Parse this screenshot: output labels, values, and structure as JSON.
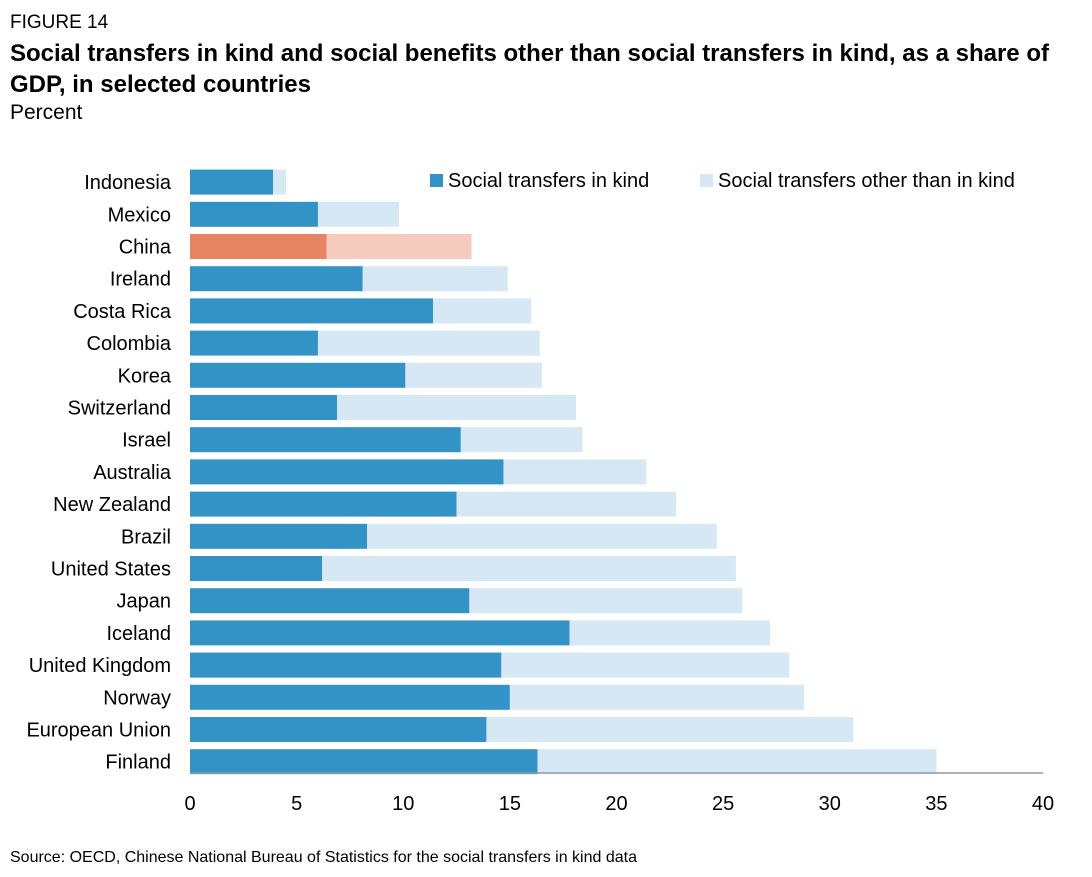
{
  "figure_label": "FIGURE 14",
  "title": "Social transfers in kind and social benefits other than social transfers in kind, as a share of GDP, in selected countries",
  "subtitle": "Percent",
  "source": "Source: OECD, Chinese National Bureau of Statistics for the social transfers in kind data",
  "colors": {
    "in_kind": "#3393c6",
    "other": "#d5e8f4",
    "highlight_in_kind": "#e78563",
    "highlight_other": "#f4cbbd",
    "axis": "#999999"
  },
  "chart_data": {
    "type": "bar",
    "orientation": "horizontal",
    "stacked": true,
    "categories": [
      "Indonesia",
      "Mexico",
      "China",
      "Ireland",
      "Costa Rica",
      "Colombia",
      "Korea",
      "Switzerland",
      "Israel",
      "Australia",
      "New Zealand",
      "Brazil",
      "United States",
      "Japan",
      "Iceland",
      "United Kingdom",
      "Norway",
      "European Union",
      "Finland"
    ],
    "highlight_category": "China",
    "series": [
      {
        "name": "Social transfers in kind",
        "values": [
          3.9,
          6.0,
          6.4,
          8.1,
          11.4,
          6.0,
          10.1,
          6.9,
          12.7,
          14.7,
          12.5,
          8.3,
          6.2,
          13.1,
          17.8,
          14.6,
          15.0,
          13.9,
          16.3
        ]
      },
      {
        "name": "Social transfers other than in kind",
        "values": [
          0.6,
          3.8,
          6.8,
          6.8,
          4.6,
          10.4,
          6.4,
          11.2,
          5.7,
          6.7,
          10.3,
          16.4,
          19.4,
          12.8,
          9.4,
          13.5,
          13.8,
          17.2,
          18.7
        ]
      }
    ],
    "xlim": [
      0,
      40
    ],
    "xticks": [
      "0",
      "5",
      "10",
      "15",
      "20",
      "25",
      "30",
      "35",
      "40"
    ],
    "xlabel": "",
    "ylabel": "",
    "legend_position": "top-right",
    "grid": false
  }
}
